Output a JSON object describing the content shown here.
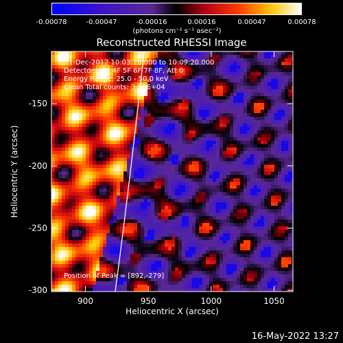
{
  "colorbar": {
    "ticks": [
      "-0.00078",
      "-0.00047",
      "-0.00016",
      "0.00016",
      "0.00047",
      "0.00078"
    ],
    "units": "(photons cm⁻² s⁻¹ asec⁻²)"
  },
  "title": "Reconstructed RHESSI Image",
  "annotations": {
    "time": "1-Dec-2012 10:03:20.000 to 10:09:20.000",
    "detectors": "Detectors: 3F 4F 5F 6F 7F 8F, Att 0",
    "energy": "Energy Range: 25.0 - 50.0 keV",
    "clean": "Clean     Total counts: 3.20E+04",
    "peak": "Position of Peak = [892,-279]"
  },
  "axes": {
    "xlabel": "Heliocentric X (arcsec)",
    "ylabel": "Heliocentric Y (arcsec)",
    "xticks": [
      900,
      950,
      1000,
      1050
    ],
    "yticks": [
      -150,
      -200,
      -250,
      -300
    ],
    "xrange": [
      873,
      1065
    ],
    "yrange": [
      -301,
      -108
    ]
  },
  "timestamp": "16-May-2022 13:27",
  "colors": {
    "background": "#000000",
    "neg_max": "#0000ff",
    "pos_max": "#ffffff"
  }
}
